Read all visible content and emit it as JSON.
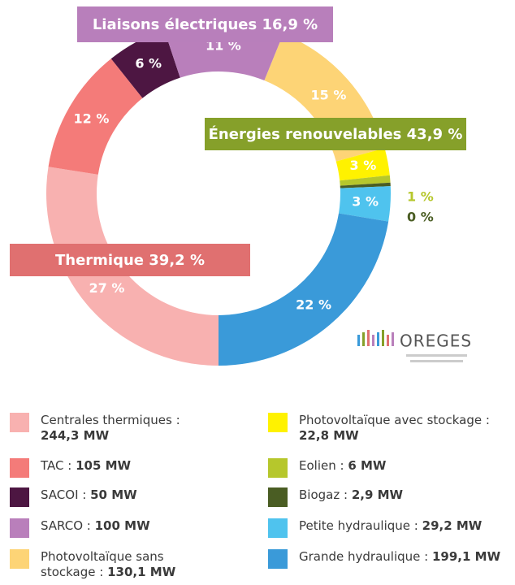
{
  "chart_data": {
    "type": "donut",
    "categories": [
      "Centrales thermiques :",
      "TAC :",
      "SACOI :",
      "SARCO :",
      "Photovoltaïque sans stockage :",
      "Photovoltaïque avec stockage :",
      "Eolien :",
      "Biogaz :",
      "Petite hydraulique :",
      "Grande hydraulique :"
    ],
    "values": [
      27.47,
      11.81,
      5.62,
      11.24,
      14.63,
      2.56,
      0.67,
      0.33,
      3.28,
      22.39
    ],
    "value_labels": [
      "27 %",
      "12 %",
      "6 %",
      "11 %",
      "15 %",
      "3 %",
      "1 %",
      "0 %",
      "3 %",
      "22 %"
    ],
    "mw_labels": [
      "244,3 MW",
      "105 MW",
      "50 MW",
      "100 MW",
      "130,1 MW",
      "22,8 MW",
      "6 MW",
      "2,9 MW",
      "29,2 MW",
      "199,1 MW"
    ],
    "colors": [
      "#f8b1b0",
      "#f47b79",
      "#4d1642",
      "#b97fbb",
      "#fdd476",
      "#fff200",
      "#b6c72c",
      "#4a5d23",
      "#4fc3ee",
      "#3a9ad9"
    ],
    "annotations": [
      {
        "text": "Liaisons électriques 16,9 %",
        "color": "#b87fbb"
      },
      {
        "text": "Énergies renouvelables 43,9 %",
        "color": "#86a02a"
      },
      {
        "text": "Thermique 39,2 %",
        "color": "#e07070"
      }
    ],
    "logo": "OREGES"
  }
}
